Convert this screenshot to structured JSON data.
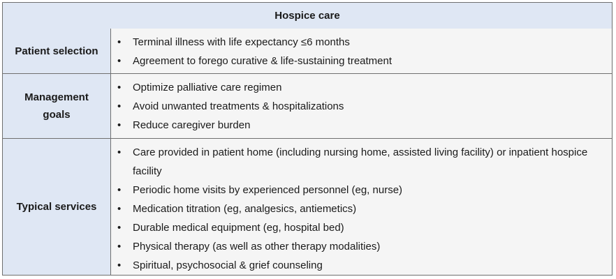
{
  "title": "Hospice care",
  "rows": [
    {
      "label": "Patient selection",
      "items": [
        "Terminal illness with life expectancy ≤6 months",
        "Agreement to forego curative & life-sustaining treatment"
      ]
    },
    {
      "label": "Management goals",
      "items": [
        "Optimize palliative care regimen",
        "Avoid unwanted treatments & hospitalizations",
        "Reduce caregiver burden"
      ]
    },
    {
      "label": "Typical services",
      "items": [
        "Care provided in patient home (including nursing home, assisted living facility) or inpatient hospice facility",
        "Periodic home visits by experienced personnel (eg, nurse)",
        "Medication titration (eg, analgesics, antiemetics)",
        "Durable medical equipment (eg, hospital bed)",
        "Physical therapy (as well as other therapy modalities)",
        "Spiritual, psychosocial & grief counseling"
      ]
    }
  ],
  "bullet_glyph": "•"
}
